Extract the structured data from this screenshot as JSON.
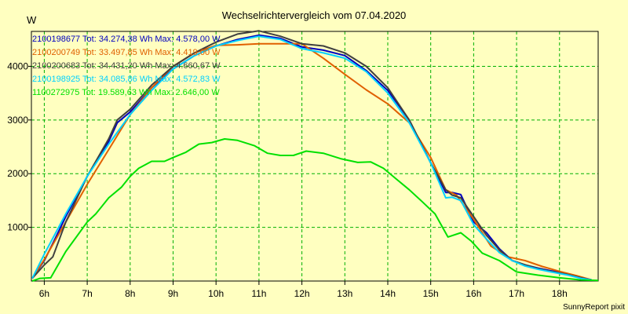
{
  "chart_data": {
    "type": "line",
    "title": "Wechselrichtervergleich vom 07.04.2020",
    "ylabel": "W",
    "xlabel": "",
    "xlim": [
      5.7,
      18.9
    ],
    "ylim": [
      0,
      4650
    ],
    "yticks": [
      1000,
      2000,
      3000,
      4000
    ],
    "ytick_labels": [
      "1000",
      "2000",
      "3000",
      "4000"
    ],
    "xticks": [
      6,
      7,
      8,
      9,
      10,
      11,
      12,
      13,
      14,
      15,
      16,
      17,
      18
    ],
    "xtick_labels": [
      "6h",
      "7h",
      "8h",
      "9h",
      "10h",
      "11h",
      "12h",
      "13h",
      "14h",
      "15h",
      "16h",
      "17h",
      "18h"
    ],
    "grid": true,
    "legend_position": "top-left",
    "footer": "SunnyReport pixit",
    "series": [
      {
        "name": "2100198677",
        "legend": "2100198677 Tot: 34.274,38 Wh Max: 4.578,00 W",
        "color": "#0000c0",
        "x": [
          5.72,
          6.0,
          6.2,
          6.5,
          7.0,
          7.5,
          7.7,
          8.0,
          8.5,
          9.0,
          9.5,
          10.0,
          10.5,
          11.0,
          11.5,
          12.0,
          12.5,
          13.0,
          13.5,
          14.0,
          14.5,
          15.0,
          15.35,
          15.5,
          15.7,
          16.0,
          16.3,
          16.6,
          16.9,
          17.2,
          17.5,
          17.8,
          18.2,
          18.5,
          18.75
        ],
        "y": [
          50,
          380,
          700,
          1200,
          1950,
          2600,
          2950,
          3150,
          3600,
          3950,
          4200,
          4380,
          4500,
          4580,
          4520,
          4360,
          4300,
          4200,
          3920,
          3550,
          3000,
          2200,
          1650,
          1650,
          1610,
          1100,
          900,
          600,
          380,
          300,
          240,
          190,
          130,
          70,
          20
        ]
      },
      {
        "name": "2100200749",
        "legend": "2100200749 Tot: 33.497,85 Wh Max: 4.419,00 W",
        "color": "#e06000",
        "x": [
          5.72,
          6.0,
          6.5,
          7.0,
          7.5,
          8.0,
          8.5,
          9.0,
          9.5,
          10.0,
          10.5,
          11.0,
          11.5,
          12.0,
          12.5,
          13.0,
          13.5,
          14.0,
          14.5,
          15.0,
          15.35,
          15.6,
          16.0,
          16.4,
          16.8,
          17.2,
          17.6,
          18.0,
          18.4,
          18.75
        ],
        "y": [
          50,
          400,
          1100,
          1800,
          2450,
          3100,
          3600,
          4000,
          4250,
          4390,
          4400,
          4419,
          4419,
          4419,
          4150,
          3850,
          3560,
          3300,
          2950,
          2300,
          1700,
          1600,
          1150,
          650,
          450,
          380,
          270,
          180,
          100,
          20
        ]
      },
      {
        "name": "2100200683",
        "legend": "2100200683 Tot: 34.431,20 Wh Max: 4.660,67 W",
        "color": "#404040",
        "x": [
          5.72,
          6.0,
          6.2,
          6.5,
          7.0,
          7.5,
          7.7,
          8.0,
          8.5,
          9.0,
          9.5,
          10.0,
          10.5,
          11.0,
          11.5,
          12.0,
          12.5,
          13.0,
          13.5,
          14.0,
          14.5,
          15.0,
          15.35,
          15.5,
          15.7,
          16.0,
          16.3,
          16.6,
          16.9,
          17.2,
          17.5,
          17.8,
          18.2,
          18.5,
          18.75
        ],
        "y": [
          50,
          300,
          450,
          1100,
          1950,
          2650,
          3000,
          3200,
          3650,
          4000,
          4250,
          4450,
          4600,
          4660,
          4560,
          4420,
          4380,
          4250,
          4000,
          3600,
          3000,
          2200,
          1700,
          1600,
          1550,
          1200,
          850,
          580,
          380,
          300,
          230,
          180,
          120,
          60,
          20
        ]
      },
      {
        "name": "2100198925",
        "legend": "2100198925 Tot: 34.085,86 Wh Max: 4.572,83 W",
        "color": "#00d0ff",
        "x": [
          5.72,
          6.0,
          6.5,
          7.0,
          7.5,
          8.0,
          8.5,
          9.0,
          9.5,
          10.0,
          10.5,
          11.0,
          11.5,
          12.0,
          12.5,
          13.0,
          13.5,
          14.0,
          14.5,
          15.0,
          15.35,
          15.5,
          15.7,
          16.0,
          16.3,
          16.6,
          16.9,
          17.2,
          17.5,
          17.8,
          18.2,
          18.5,
          18.75
        ],
        "y": [
          50,
          500,
          1250,
          1950,
          2550,
          3100,
          3550,
          3950,
          4200,
          4380,
          4480,
          4560,
          4500,
          4330,
          4250,
          4150,
          3900,
          3500,
          2950,
          2200,
          1550,
          1560,
          1500,
          1050,
          780,
          530,
          380,
          280,
          220,
          170,
          110,
          50,
          20
        ]
      },
      {
        "name": "1100272975",
        "legend": "1100272975 Tot: 19.589,63 Wh Max: 2.646,00 W",
        "color": "#00e000",
        "x": [
          5.72,
          5.9,
          6.15,
          6.5,
          7.0,
          7.2,
          7.5,
          7.8,
          8.0,
          8.2,
          8.5,
          8.8,
          9.0,
          9.3,
          9.6,
          9.9,
          10.2,
          10.5,
          10.9,
          11.2,
          11.5,
          11.8,
          12.1,
          12.5,
          12.9,
          13.3,
          13.6,
          13.9,
          14.2,
          14.5,
          14.8,
          15.1,
          15.4,
          15.7,
          15.95,
          16.2,
          16.6,
          17.0,
          17.5,
          18.0,
          18.5,
          18.9
        ],
        "y": [
          0,
          50,
          60,
          550,
          1100,
          1250,
          1550,
          1750,
          1950,
          2100,
          2230,
          2230,
          2300,
          2400,
          2550,
          2580,
          2646,
          2620,
          2520,
          2380,
          2340,
          2340,
          2420,
          2380,
          2280,
          2210,
          2220,
          2100,
          1900,
          1700,
          1480,
          1250,
          820,
          900,
          740,
          520,
          380,
          170,
          110,
          60,
          20,
          10
        ]
      }
    ]
  }
}
